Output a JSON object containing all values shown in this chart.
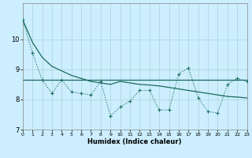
{
  "xlabel": "Humidex (Indice chaleur)",
  "background_color": "#cceeff",
  "line_color": "#1a6b5e",
  "grid_color": "#aad4d4",
  "x_data": [
    0,
    1,
    2,
    3,
    4,
    5,
    6,
    7,
    8,
    9,
    10,
    11,
    12,
    13,
    14,
    15,
    16,
    17,
    18,
    19,
    20,
    21,
    22,
    23
  ],
  "y_wavy": [
    10.65,
    9.55,
    8.65,
    8.2,
    8.65,
    8.25,
    8.2,
    8.15,
    8.6,
    7.45,
    7.75,
    7.95,
    8.3,
    8.3,
    7.65,
    7.65,
    8.85,
    9.05,
    8.05,
    7.6,
    7.55,
    8.5,
    8.7,
    8.6
  ],
  "y_trend": [
    10.65,
    9.9,
    9.4,
    9.1,
    8.95,
    8.8,
    8.7,
    8.6,
    8.55,
    8.5,
    8.6,
    8.55,
    8.5,
    8.48,
    8.45,
    8.4,
    8.35,
    8.3,
    8.25,
    8.2,
    8.15,
    8.1,
    8.08,
    8.05
  ],
  "y_flat": 8.65,
  "ylim": [
    7.0,
    11.2
  ],
  "xlim": [
    0,
    23
  ],
  "yticks": [
    7,
    8,
    9,
    10
  ],
  "xticks": [
    0,
    1,
    2,
    3,
    4,
    5,
    6,
    7,
    8,
    9,
    10,
    11,
    12,
    13,
    14,
    15,
    16,
    17,
    18,
    19,
    20,
    21,
    22,
    23
  ]
}
